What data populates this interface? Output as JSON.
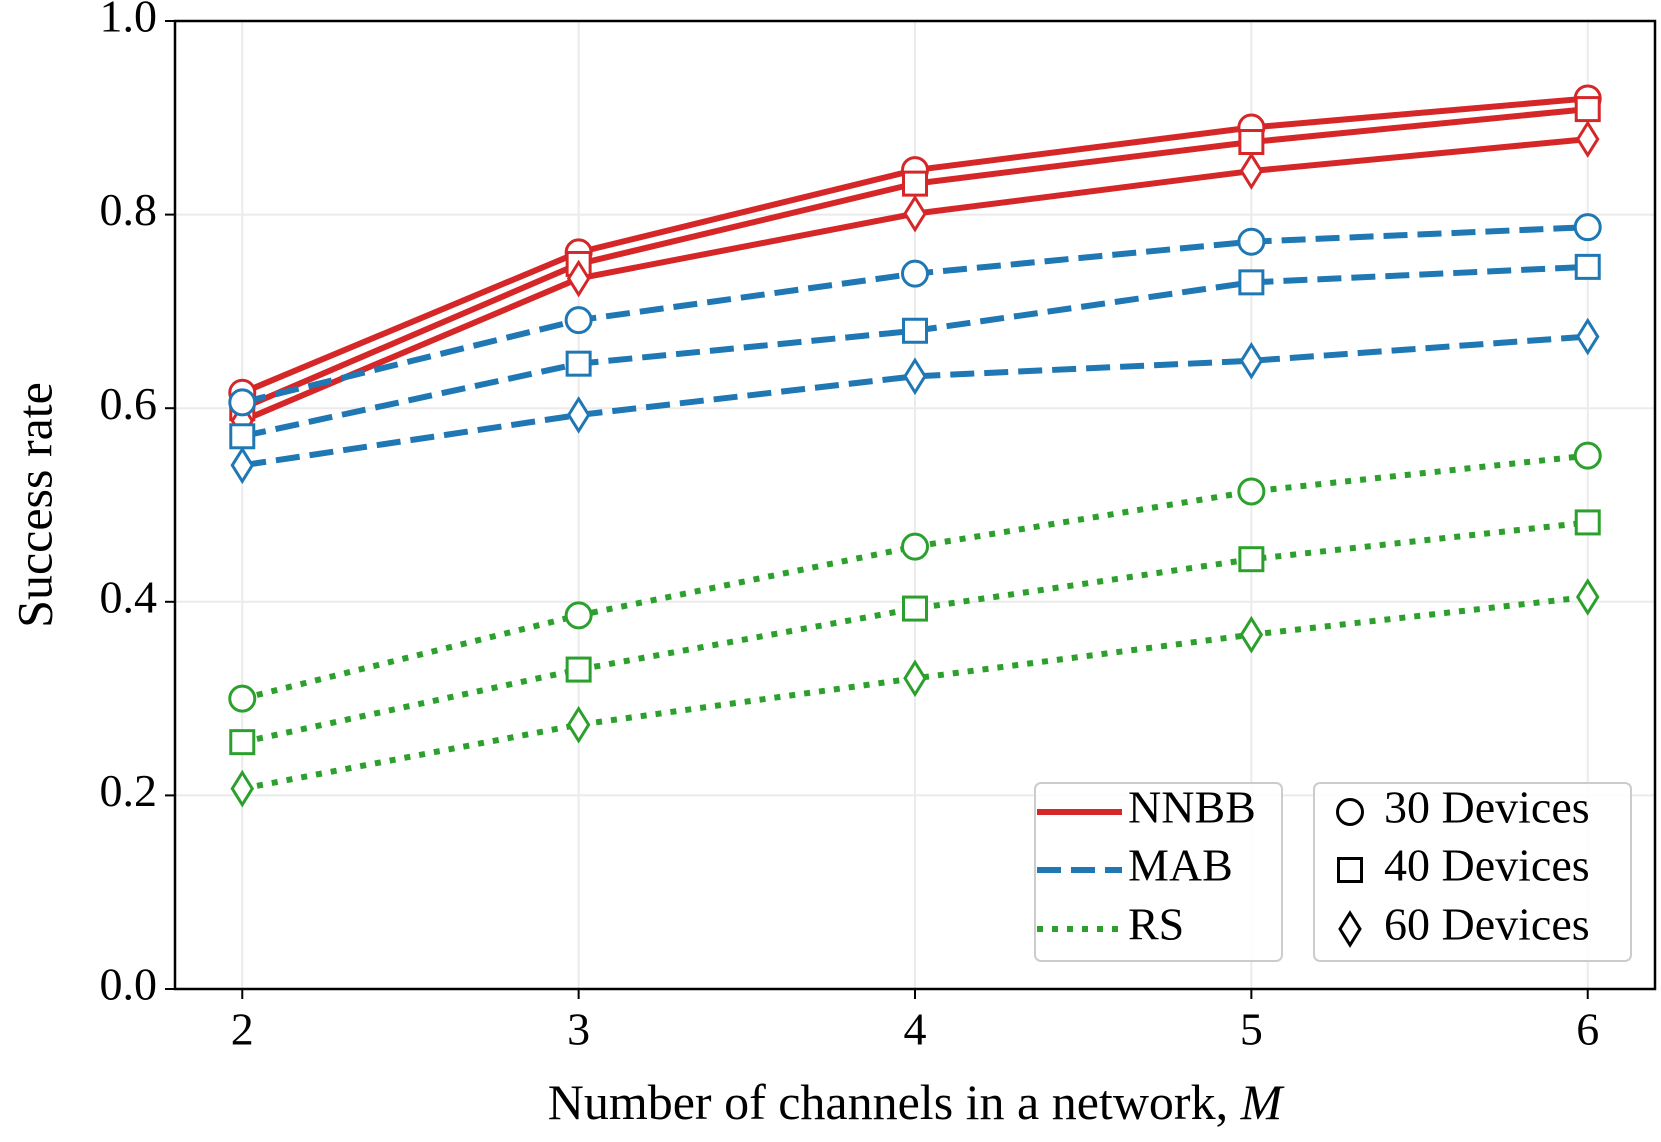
{
  "chart_data": {
    "type": "line",
    "xlabel": "Number of channels in a network, ",
    "xlabel_var": "M",
    "ylabel": "Success rate",
    "x": [
      2,
      3,
      4,
      5,
      6
    ],
    "series": [
      {
        "color": "#d62728",
        "style": "solid",
        "marker": "circle",
        "values": [
          0.616,
          0.761,
          0.846,
          0.89,
          0.92
        ]
      },
      {
        "color": "#d62728",
        "style": "solid",
        "marker": "square",
        "values": [
          0.6,
          0.749,
          0.832,
          0.875,
          0.909
        ]
      },
      {
        "color": "#d62728",
        "style": "solid",
        "marker": "diamond",
        "values": [
          0.587,
          0.734,
          0.801,
          0.845,
          0.878
        ]
      },
      {
        "color": "#1f77b4",
        "style": "dashed",
        "marker": "circle",
        "values": [
          0.606,
          0.691,
          0.739,
          0.772,
          0.787
        ]
      },
      {
        "color": "#1f77b4",
        "style": "dashed",
        "marker": "square",
        "values": [
          0.571,
          0.646,
          0.68,
          0.73,
          0.746
        ]
      },
      {
        "color": "#1f77b4",
        "style": "dashed",
        "marker": "diamond",
        "values": [
          0.541,
          0.593,
          0.633,
          0.649,
          0.674
        ]
      },
      {
        "color": "#2ca02c",
        "style": "dotted",
        "marker": "circle",
        "values": [
          0.3,
          0.386,
          0.457,
          0.514,
          0.551
        ]
      },
      {
        "color": "#2ca02c",
        "style": "dotted",
        "marker": "square",
        "values": [
          0.255,
          0.33,
          0.393,
          0.444,
          0.482
        ]
      },
      {
        "color": "#2ca02c",
        "style": "dotted",
        "marker": "diamond",
        "values": [
          0.207,
          0.273,
          0.321,
          0.366,
          0.405
        ]
      }
    ],
    "legend_lines": [
      {
        "label": "NNBB",
        "color": "#d62728",
        "style": "solid"
      },
      {
        "label": "MAB",
        "color": "#1f77b4",
        "style": "dashed"
      },
      {
        "label": "RS",
        "color": "#2ca02c",
        "style": "dotted"
      }
    ],
    "legend_markers": [
      {
        "label": "30 Devices",
        "marker": "circle"
      },
      {
        "label": "40 Devices",
        "marker": "square"
      },
      {
        "label": "60 Devices",
        "marker": "diamond"
      }
    ],
    "legend": "lower right",
    "xlim": [
      1.8,
      6.2
    ],
    "xticks": [
      2,
      3,
      4,
      5,
      6
    ],
    "ylim": [
      0,
      1
    ],
    "yticks": [
      {
        "value": 0,
        "label": "0.0"
      },
      0.2,
      0.4,
      0.6,
      0.8,
      {
        "value": 1,
        "label": "1.0"
      }
    ],
    "grid": true
  }
}
